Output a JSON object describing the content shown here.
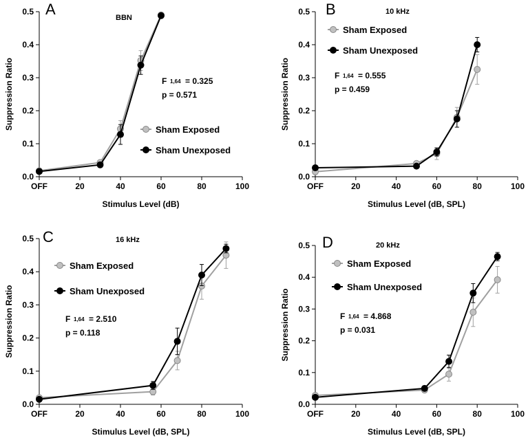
{
  "chart_data": [
    {
      "type": "line",
      "letter": "A",
      "title": "BBN",
      "xlabel": "Stimulus Level (dB)",
      "ylabel": "Suppression Ratio",
      "xlim": [
        0,
        100
      ],
      "ylim": [
        0,
        0.5
      ],
      "xticks": [
        {
          "value": 0,
          "label": "OFF"
        },
        {
          "value": 20,
          "label": "20"
        },
        {
          "value": 40,
          "label": "40"
        },
        {
          "value": 60,
          "label": "60"
        },
        {
          "value": 80,
          "label": "80"
        },
        {
          "value": 100,
          "label": "100"
        }
      ],
      "yticks": [
        {
          "value": 0,
          "label": "0.0"
        },
        {
          "value": 0.1,
          "label": "0.1"
        },
        {
          "value": 0.2,
          "label": "0.2"
        },
        {
          "value": 0.3,
          "label": "0.3"
        },
        {
          "value": 0.4,
          "label": "0.4"
        },
        {
          "value": 0.5,
          "label": "0.5"
        }
      ],
      "series": [
        {
          "name": "Sham Exposed",
          "color": "#a0a0a0",
          "marker": "#c0c0c0",
          "x": [
            0,
            30,
            40,
            50,
            60
          ],
          "y": [
            0.018,
            0.043,
            0.145,
            0.352,
            0.49
          ],
          "err": [
            0,
            0.005,
            0.025,
            0.03,
            0
          ]
        },
        {
          "name": "Sham Unexposed",
          "color": "#000000",
          "marker": "#000000",
          "x": [
            0,
            30,
            40,
            50,
            60
          ],
          "y": [
            0.016,
            0.036,
            0.128,
            0.338,
            0.488
          ],
          "err": [
            0,
            0.008,
            0.03,
            0.028,
            0
          ]
        }
      ],
      "stat_F": "F",
      "stat_df": "1,64",
      "stat_Fval": "= 0.325",
      "stat_p": "p = 0.571"
    },
    {
      "type": "line",
      "letter": "B",
      "title": "10 kHz",
      "xlabel": "Stimulus Level (dB, SPL)",
      "ylabel": "Suppression Ratio",
      "xlim": [
        0,
        100
      ],
      "ylim": [
        0,
        0.5
      ],
      "xticks": [
        {
          "value": 0,
          "label": "OFF"
        },
        {
          "value": 20,
          "label": "20"
        },
        {
          "value": 40,
          "label": "40"
        },
        {
          "value": 60,
          "label": "60"
        },
        {
          "value": 80,
          "label": "80"
        },
        {
          "value": 100,
          "label": "100"
        }
      ],
      "yticks": [
        {
          "value": 0,
          "label": "0.0"
        },
        {
          "value": 0.1,
          "label": "0.1"
        },
        {
          "value": 0.2,
          "label": "0.2"
        },
        {
          "value": 0.3,
          "label": "0.3"
        },
        {
          "value": 0.4,
          "label": "0.4"
        },
        {
          "value": 0.5,
          "label": "0.5"
        }
      ],
      "series": [
        {
          "name": "Sham Exposed",
          "color": "#a0a0a0",
          "marker": "#c0c0c0",
          "x": [
            0,
            50,
            60,
            70,
            80
          ],
          "y": [
            0.015,
            0.04,
            0.07,
            0.18,
            0.325
          ],
          "err": [
            0,
            0.004,
            0.018,
            0.03,
            0.045
          ]
        },
        {
          "name": "Sham Unexposed",
          "color": "#000000",
          "marker": "#000000",
          "x": [
            0,
            50,
            60,
            70,
            80
          ],
          "y": [
            0.027,
            0.032,
            0.075,
            0.175,
            0.4
          ],
          "err": [
            0,
            0.004,
            0.012,
            0.025,
            0.022
          ]
        }
      ],
      "stat_F": "F",
      "stat_df": "1,64",
      "stat_Fval": "= 0.555",
      "stat_p": "p = 0.459"
    },
    {
      "type": "line",
      "letter": "C",
      "title": "16 kHz",
      "xlabel": "Stimulus Level (dB, SPL)",
      "ylabel": "Suppression Ratio",
      "xlim": [
        0,
        100
      ],
      "ylim": [
        0,
        0.5
      ],
      "xticks": [
        {
          "value": 0,
          "label": "OFF"
        },
        {
          "value": 20,
          "label": "20"
        },
        {
          "value": 40,
          "label": "40"
        },
        {
          "value": 60,
          "label": "60"
        },
        {
          "value": 80,
          "label": "80"
        },
        {
          "value": 100,
          "label": "100"
        }
      ],
      "yticks": [
        {
          "value": 0,
          "label": "0.0"
        },
        {
          "value": 0.1,
          "label": "0.1"
        },
        {
          "value": 0.2,
          "label": "0.2"
        },
        {
          "value": 0.3,
          "label": "0.3"
        },
        {
          "value": 0.4,
          "label": "0.4"
        },
        {
          "value": 0.5,
          "label": "0.5"
        }
      ],
      "series": [
        {
          "name": "Sham Exposed",
          "color": "#a0a0a0",
          "marker": "#c0c0c0",
          "x": [
            0,
            56,
            68,
            80,
            92
          ],
          "y": [
            0.02,
            0.038,
            0.132,
            0.357,
            0.45
          ],
          "err": [
            0,
            0.01,
            0.028,
            0.04,
            0.04
          ]
        },
        {
          "name": "Sham Unexposed",
          "color": "#000000",
          "marker": "#000000",
          "x": [
            0,
            56,
            68,
            80,
            92
          ],
          "y": [
            0.015,
            0.057,
            0.19,
            0.39,
            0.47
          ],
          "err": [
            0,
            0.012,
            0.04,
            0.032,
            0.013
          ]
        }
      ],
      "stat_F": "F",
      "stat_df": "1,64",
      "stat_Fval": "= 2.510",
      "stat_p": "p = 0.118"
    },
    {
      "type": "line",
      "letter": "D",
      "title": "20 kHz",
      "xlabel": "Stimulus Level (dB, SPL)",
      "ylabel": "Suppression Ratio",
      "xlim": [
        0,
        100
      ],
      "ylim": [
        0,
        0.5
      ],
      "xticks": [
        {
          "value": 0,
          "label": "OFF"
        },
        {
          "value": 20,
          "label": "20"
        },
        {
          "value": 40,
          "label": "40"
        },
        {
          "value": 60,
          "label": "60"
        },
        {
          "value": 80,
          "label": "80"
        },
        {
          "value": 100,
          "label": "100"
        }
      ],
      "yticks": [
        {
          "value": 0,
          "label": "0.0"
        },
        {
          "value": 0.1,
          "label": "0.1"
        },
        {
          "value": 0.2,
          "label": "0.2"
        },
        {
          "value": 0.3,
          "label": "0.3"
        },
        {
          "value": 0.4,
          "label": "0.4"
        },
        {
          "value": 0.5,
          "label": "0.5"
        }
      ],
      "series": [
        {
          "name": "Sham Exposed",
          "color": "#a0a0a0",
          "marker": "#c0c0c0",
          "x": [
            0,
            54,
            66,
            78,
            90
          ],
          "y": [
            0.028,
            0.045,
            0.095,
            0.29,
            0.392
          ],
          "err": [
            0,
            0.008,
            0.022,
            0.045,
            0.042
          ]
        },
        {
          "name": "Sham Unexposed",
          "color": "#000000",
          "marker": "#000000",
          "x": [
            0,
            54,
            66,
            78,
            90
          ],
          "y": [
            0.022,
            0.05,
            0.135,
            0.35,
            0.465
          ],
          "err": [
            0,
            0.008,
            0.02,
            0.03,
            0.013
          ]
        }
      ],
      "stat_F": "F",
      "stat_df": "1,64",
      "stat_Fval": "= 4.868",
      "stat_p": "p = 0.031"
    }
  ]
}
